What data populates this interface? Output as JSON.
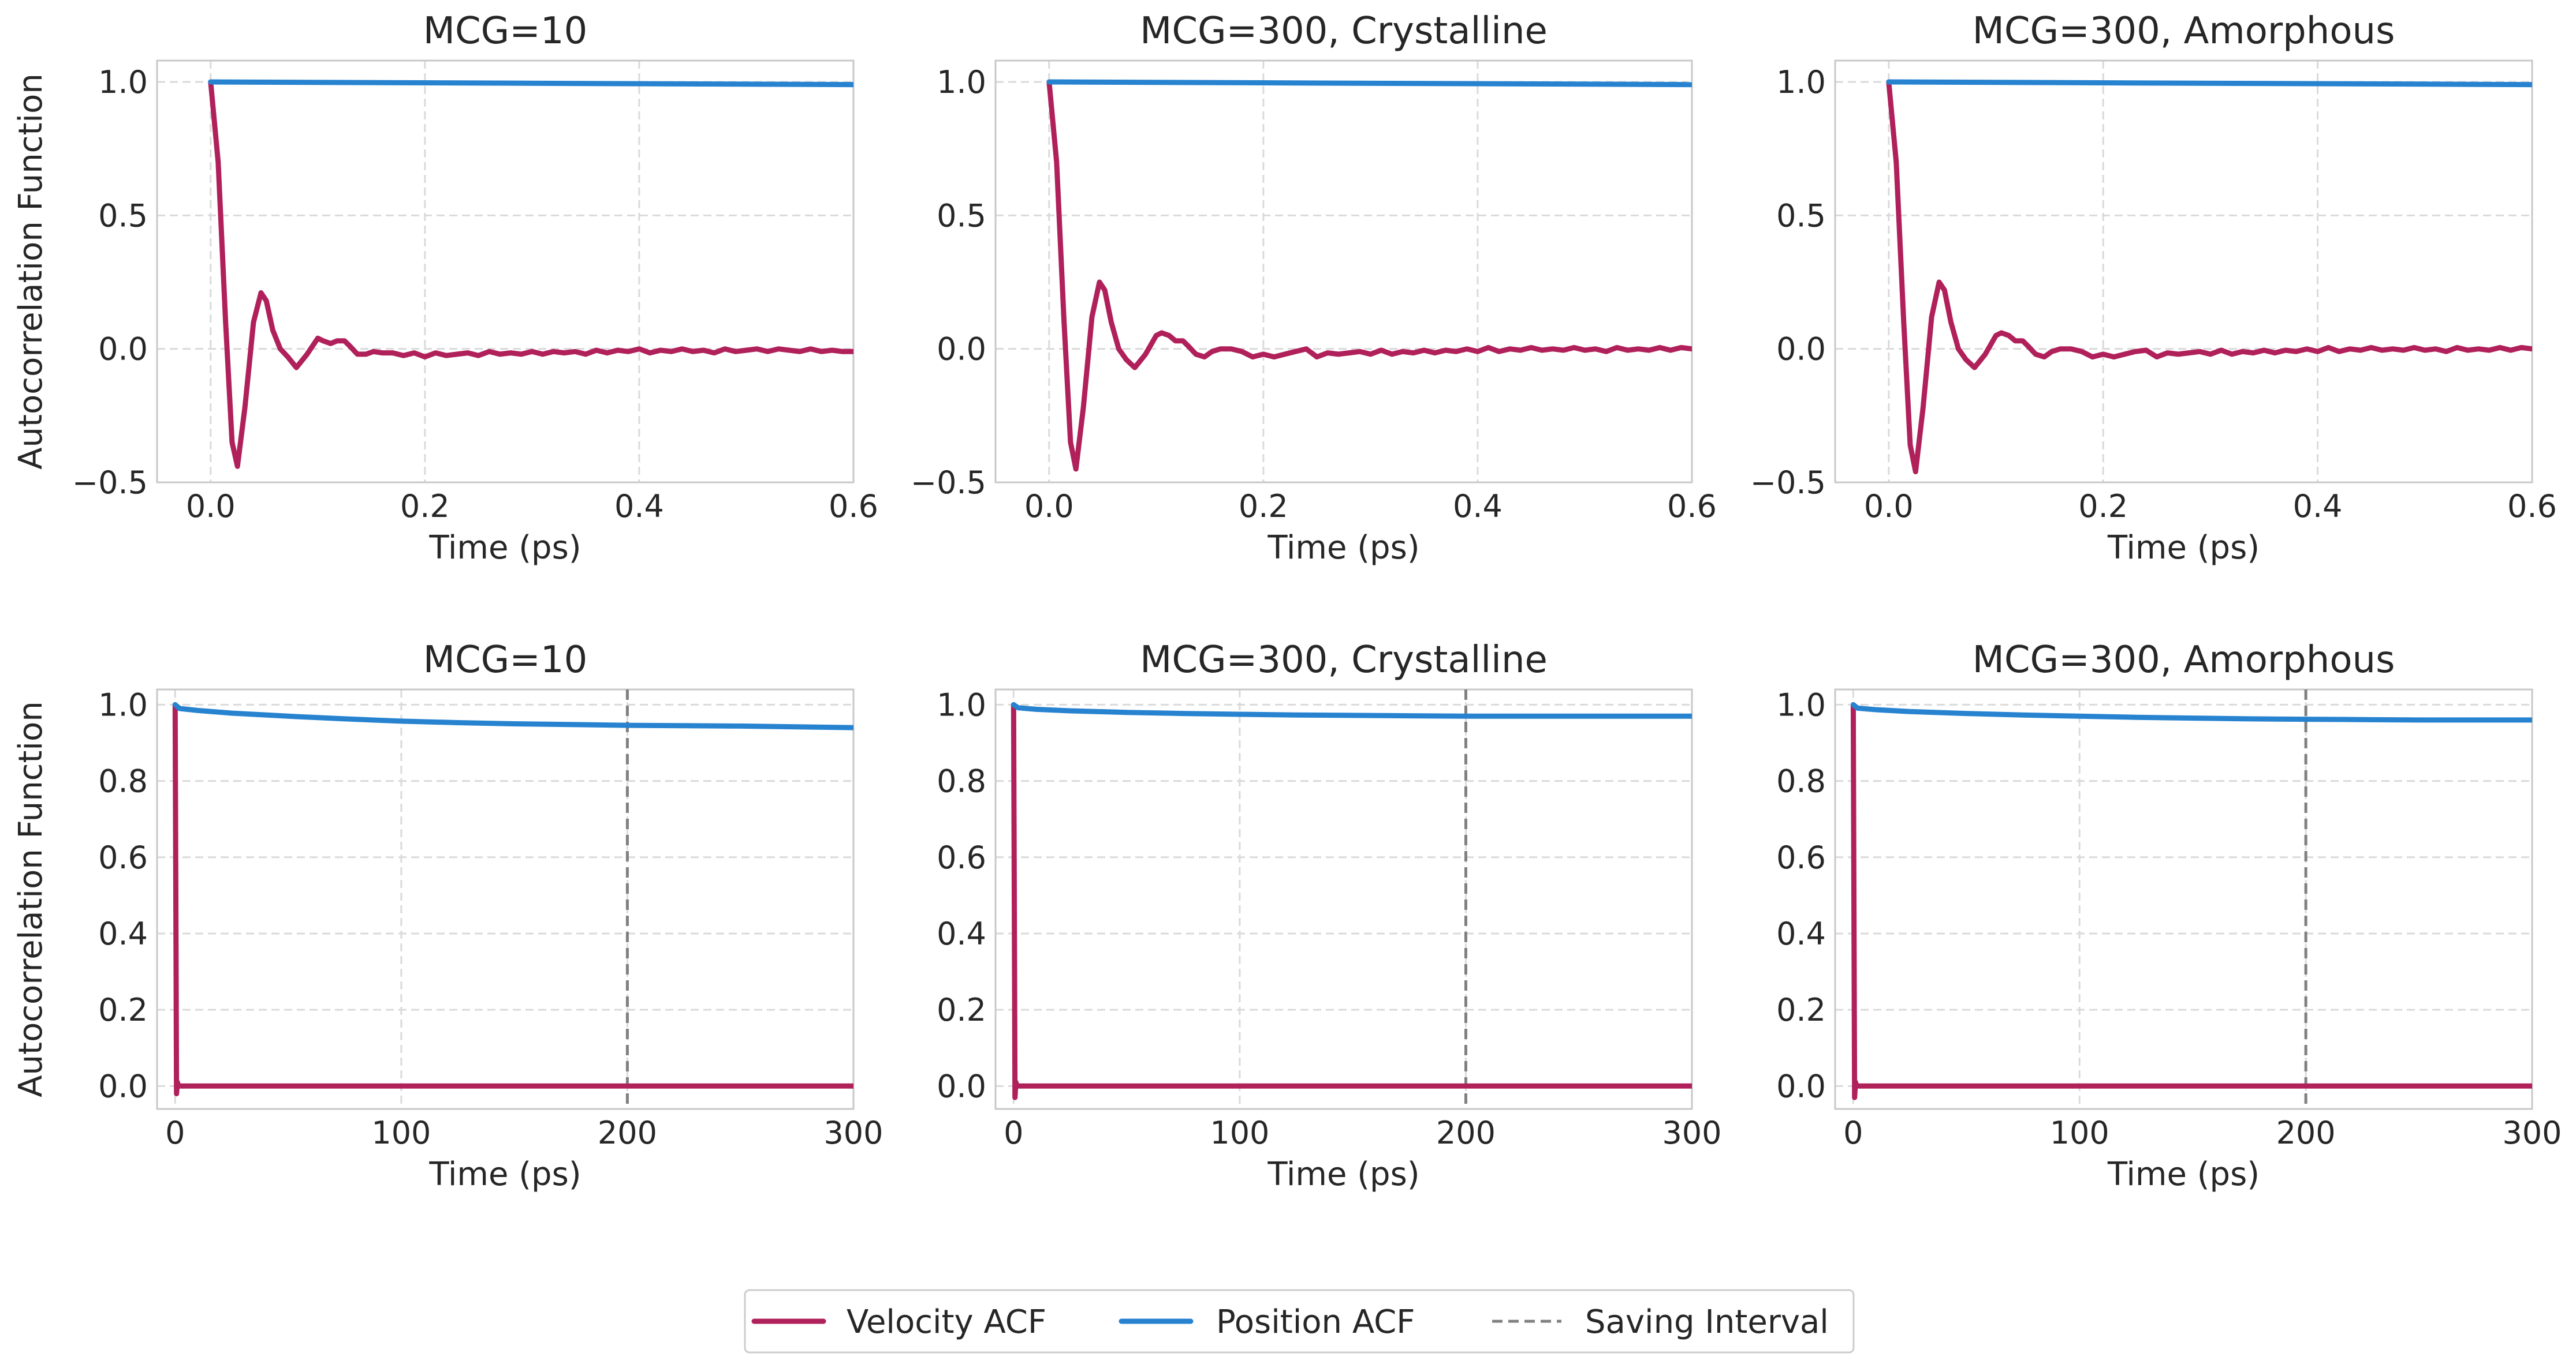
{
  "colors": {
    "velocity": "#B0205A",
    "position": "#2783D0",
    "saving": "#808080",
    "grid": "#DADADA",
    "frame": "#C8C8C8"
  },
  "legend": {
    "velocity": "Velocity ACF",
    "position": "Position ACF",
    "saving": "Saving Interval"
  },
  "chart_data": [
    {
      "type": "line",
      "title": "MCG=10",
      "xlabel": "Time (ps)",
      "ylabel": "Autocorrelation Function",
      "xlim": [
        -0.05,
        0.6
      ],
      "ylim": [
        -0.5,
        1.08
      ],
      "xticks": [
        0.0,
        0.2,
        0.4,
        0.6
      ],
      "xticklabels": [
        "0.0",
        "0.2",
        "0.4",
        "0.6"
      ],
      "yticks": [
        -0.5,
        0.0,
        0.5,
        1.0
      ],
      "yticklabels": [
        "−0.5",
        "0.0",
        "0.5",
        "1.0"
      ],
      "grid": true,
      "series": [
        {
          "name": "Velocity ACF",
          "x": [
            0.0,
            0.007,
            0.014,
            0.02,
            0.025,
            0.032,
            0.04,
            0.047,
            0.052,
            0.058,
            0.065,
            0.072,
            0.08,
            0.09,
            0.1,
            0.105,
            0.112,
            0.118,
            0.125,
            0.13,
            0.137,
            0.145,
            0.152,
            0.16,
            0.17,
            0.18,
            0.19,
            0.2,
            0.21,
            0.22,
            0.23,
            0.24,
            0.25,
            0.26,
            0.27,
            0.28,
            0.29,
            0.3,
            0.31,
            0.32,
            0.33,
            0.34,
            0.35,
            0.36,
            0.37,
            0.38,
            0.39,
            0.4,
            0.41,
            0.42,
            0.43,
            0.44,
            0.45,
            0.46,
            0.47,
            0.48,
            0.49,
            0.5,
            0.51,
            0.52,
            0.53,
            0.54,
            0.55,
            0.56,
            0.57,
            0.58,
            0.59,
            0.6
          ],
          "y": [
            1.0,
            0.7,
            0.1,
            -0.35,
            -0.44,
            -0.22,
            0.1,
            0.21,
            0.18,
            0.07,
            0.0,
            -0.03,
            -0.07,
            -0.02,
            0.04,
            0.03,
            0.02,
            0.03,
            0.03,
            0.01,
            -0.02,
            -0.02,
            -0.01,
            -0.015,
            -0.015,
            -0.025,
            -0.015,
            -0.03,
            -0.015,
            -0.025,
            -0.02,
            -0.015,
            -0.025,
            -0.01,
            -0.02,
            -0.015,
            -0.02,
            -0.01,
            -0.02,
            -0.01,
            -0.015,
            -0.01,
            -0.02,
            -0.005,
            -0.015,
            -0.005,
            -0.01,
            0.0,
            -0.015,
            -0.005,
            -0.01,
            0.0,
            -0.01,
            -0.005,
            -0.015,
            0.0,
            -0.01,
            -0.005,
            0.0,
            -0.01,
            0.0,
            -0.005,
            -0.01,
            0.0,
            -0.01,
            -0.005,
            -0.01,
            -0.01
          ]
        },
        {
          "name": "Position ACF",
          "x": [
            0.0,
            0.6
          ],
          "y": [
            1.0,
            0.99
          ]
        }
      ]
    },
    {
      "type": "line",
      "title": "MCG=300, Crystalline",
      "xlabel": "Time (ps)",
      "ylabel": "",
      "xlim": [
        -0.05,
        0.6
      ],
      "ylim": [
        -0.5,
        1.08
      ],
      "xticks": [
        0.0,
        0.2,
        0.4,
        0.6
      ],
      "xticklabels": [
        "0.0",
        "0.2",
        "0.4",
        "0.6"
      ],
      "yticks": [
        -0.5,
        0.0,
        0.5,
        1.0
      ],
      "yticklabels": [
        "−0.5",
        "0.0",
        "0.5",
        "1.0"
      ],
      "grid": true,
      "series": [
        {
          "name": "Velocity ACF",
          "x": [
            0.0,
            0.007,
            0.014,
            0.02,
            0.025,
            0.032,
            0.04,
            0.047,
            0.052,
            0.058,
            0.065,
            0.072,
            0.08,
            0.09,
            0.1,
            0.105,
            0.112,
            0.118,
            0.125,
            0.13,
            0.137,
            0.145,
            0.152,
            0.16,
            0.17,
            0.18,
            0.19,
            0.2,
            0.21,
            0.22,
            0.23,
            0.24,
            0.25,
            0.26,
            0.27,
            0.28,
            0.29,
            0.3,
            0.31,
            0.32,
            0.33,
            0.34,
            0.35,
            0.36,
            0.37,
            0.38,
            0.39,
            0.4,
            0.41,
            0.42,
            0.43,
            0.44,
            0.45,
            0.46,
            0.47,
            0.48,
            0.49,
            0.5,
            0.51,
            0.52,
            0.53,
            0.54,
            0.55,
            0.56,
            0.57,
            0.58,
            0.59,
            0.6
          ],
          "y": [
            1.0,
            0.7,
            0.1,
            -0.35,
            -0.45,
            -0.22,
            0.12,
            0.25,
            0.22,
            0.1,
            0.0,
            -0.04,
            -0.07,
            -0.02,
            0.05,
            0.06,
            0.05,
            0.03,
            0.03,
            0.01,
            -0.02,
            -0.03,
            -0.01,
            0.0,
            0.0,
            -0.01,
            -0.03,
            -0.02,
            -0.03,
            -0.02,
            -0.01,
            0.0,
            -0.03,
            -0.015,
            -0.02,
            -0.015,
            -0.01,
            -0.02,
            -0.005,
            -0.02,
            -0.01,
            -0.015,
            -0.005,
            -0.015,
            -0.005,
            -0.01,
            0.0,
            -0.01,
            0.005,
            -0.01,
            0.0,
            -0.005,
            0.005,
            -0.005,
            0.0,
            -0.005,
            0.005,
            -0.005,
            0.0,
            -0.01,
            0.005,
            -0.005,
            0.0,
            -0.005,
            0.005,
            -0.005,
            0.005,
            0.0
          ]
        },
        {
          "name": "Position ACF",
          "x": [
            0.0,
            0.6
          ],
          "y": [
            1.0,
            0.99
          ]
        }
      ]
    },
    {
      "type": "line",
      "title": "MCG=300, Amorphous",
      "xlabel": "Time (ps)",
      "ylabel": "",
      "xlim": [
        -0.05,
        0.6
      ],
      "ylim": [
        -0.5,
        1.08
      ],
      "xticks": [
        0.0,
        0.2,
        0.4,
        0.6
      ],
      "xticklabels": [
        "0.0",
        "0.2",
        "0.4",
        "0.6"
      ],
      "yticks": [
        -0.5,
        0.0,
        0.5,
        1.0
      ],
      "yticklabels": [
        "−0.5",
        "0.0",
        "0.5",
        "1.0"
      ],
      "grid": true,
      "series": [
        {
          "name": "Velocity ACF",
          "x": [
            0.0,
            0.007,
            0.014,
            0.02,
            0.025,
            0.032,
            0.04,
            0.047,
            0.052,
            0.058,
            0.065,
            0.072,
            0.08,
            0.09,
            0.1,
            0.105,
            0.112,
            0.118,
            0.125,
            0.13,
            0.137,
            0.145,
            0.152,
            0.16,
            0.17,
            0.18,
            0.19,
            0.2,
            0.21,
            0.22,
            0.23,
            0.24,
            0.25,
            0.26,
            0.27,
            0.28,
            0.29,
            0.3,
            0.31,
            0.32,
            0.33,
            0.34,
            0.35,
            0.36,
            0.37,
            0.38,
            0.39,
            0.4,
            0.41,
            0.42,
            0.43,
            0.44,
            0.45,
            0.46,
            0.47,
            0.48,
            0.49,
            0.5,
            0.51,
            0.52,
            0.53,
            0.54,
            0.55,
            0.56,
            0.57,
            0.58,
            0.59,
            0.6
          ],
          "y": [
            1.0,
            0.7,
            0.1,
            -0.36,
            -0.46,
            -0.22,
            0.12,
            0.25,
            0.22,
            0.1,
            0.0,
            -0.04,
            -0.07,
            -0.02,
            0.05,
            0.06,
            0.05,
            0.03,
            0.03,
            0.01,
            -0.02,
            -0.03,
            -0.01,
            0.0,
            0.0,
            -0.01,
            -0.03,
            -0.02,
            -0.03,
            -0.02,
            -0.01,
            -0.005,
            -0.03,
            -0.015,
            -0.02,
            -0.015,
            -0.01,
            -0.02,
            -0.005,
            -0.02,
            -0.01,
            -0.015,
            -0.005,
            -0.015,
            -0.005,
            -0.01,
            0.0,
            -0.01,
            0.005,
            -0.01,
            0.0,
            -0.005,
            0.005,
            -0.005,
            0.0,
            -0.005,
            0.005,
            -0.005,
            0.0,
            -0.01,
            0.005,
            -0.005,
            0.0,
            -0.005,
            0.005,
            -0.005,
            0.005,
            0.0
          ]
        },
        {
          "name": "Position ACF",
          "x": [
            0.0,
            0.6
          ],
          "y": [
            1.0,
            0.99
          ]
        }
      ]
    },
    {
      "type": "line",
      "title": "MCG=10",
      "xlabel": "Time (ps)",
      "ylabel": "Autocorrelation Function",
      "xlim": [
        -8,
        300
      ],
      "ylim": [
        -0.06,
        1.04
      ],
      "xticks": [
        0,
        100,
        200,
        300
      ],
      "xticklabels": [
        "0",
        "100",
        "200",
        "300"
      ],
      "yticks": [
        0.0,
        0.2,
        0.4,
        0.6,
        0.8,
        1.0
      ],
      "yticklabels": [
        "0.0",
        "0.2",
        "0.4",
        "0.6",
        "0.8",
        "1.0"
      ],
      "grid": true,
      "saving_interval_x": 200,
      "series": [
        {
          "name": "Velocity ACF",
          "x": [
            0,
            0.3,
            0.6,
            1.0,
            1.5,
            2,
            50,
            100,
            150,
            200,
            250,
            300
          ],
          "y": [
            1.0,
            0.5,
            -0.02,
            0.01,
            0.0,
            0.0,
            0.0,
            0.0,
            0.0,
            0.0,
            0.0,
            0.0
          ]
        },
        {
          "name": "Position ACF",
          "x": [
            0,
            2,
            10,
            25,
            50,
            75,
            100,
            125,
            150,
            175,
            200,
            225,
            250,
            275,
            300
          ],
          "y": [
            1.0,
            0.99,
            0.985,
            0.978,
            0.97,
            0.963,
            0.957,
            0.953,
            0.95,
            0.948,
            0.946,
            0.945,
            0.944,
            0.942,
            0.94
          ]
        }
      ]
    },
    {
      "type": "line",
      "title": "MCG=300, Crystalline",
      "xlabel": "Time (ps)",
      "ylabel": "",
      "xlim": [
        -8,
        300
      ],
      "ylim": [
        -0.06,
        1.04
      ],
      "xticks": [
        0,
        100,
        200,
        300
      ],
      "xticklabels": [
        "0",
        "100",
        "200",
        "300"
      ],
      "yticks": [
        0.0,
        0.2,
        0.4,
        0.6,
        0.8,
        1.0
      ],
      "yticklabels": [
        "0.0",
        "0.2",
        "0.4",
        "0.6",
        "0.8",
        "1.0"
      ],
      "grid": true,
      "saving_interval_x": 200,
      "series": [
        {
          "name": "Velocity ACF",
          "x": [
            0,
            0.3,
            0.6,
            1.0,
            1.5,
            2,
            50,
            100,
            150,
            200,
            250,
            300
          ],
          "y": [
            1.0,
            0.5,
            -0.03,
            0.01,
            0.0,
            0.0,
            0.0,
            0.0,
            0.0,
            0.0,
            0.0,
            0.0
          ]
        },
        {
          "name": "Position ACF",
          "x": [
            0,
            2,
            10,
            25,
            50,
            75,
            100,
            125,
            150,
            175,
            200,
            225,
            250,
            275,
            300
          ],
          "y": [
            1.0,
            0.992,
            0.988,
            0.984,
            0.98,
            0.977,
            0.975,
            0.973,
            0.972,
            0.971,
            0.97,
            0.97,
            0.97,
            0.97,
            0.97
          ]
        }
      ]
    },
    {
      "type": "line",
      "title": "MCG=300, Amorphous",
      "xlabel": "Time (ps)",
      "ylabel": "",
      "xlim": [
        -8,
        300
      ],
      "ylim": [
        -0.06,
        1.04
      ],
      "xticks": [
        0,
        100,
        200,
        300
      ],
      "xticklabels": [
        "0",
        "100",
        "200",
        "300"
      ],
      "yticks": [
        0.0,
        0.2,
        0.4,
        0.6,
        0.8,
        1.0
      ],
      "yticklabels": [
        "0.0",
        "0.2",
        "0.4",
        "0.6",
        "0.8",
        "1.0"
      ],
      "grid": true,
      "saving_interval_x": 200,
      "series": [
        {
          "name": "Velocity ACF",
          "x": [
            0,
            0.3,
            0.6,
            1.0,
            1.5,
            2,
            50,
            100,
            150,
            200,
            250,
            300
          ],
          "y": [
            1.0,
            0.5,
            -0.03,
            0.01,
            0.0,
            0.0,
            0.0,
            0.0,
            0.0,
            0.0,
            0.0,
            0.0
          ]
        },
        {
          "name": "Position ACF",
          "x": [
            0,
            2,
            10,
            25,
            50,
            75,
            100,
            125,
            150,
            175,
            200,
            225,
            250,
            275,
            300
          ],
          "y": [
            1.0,
            0.991,
            0.987,
            0.982,
            0.977,
            0.973,
            0.97,
            0.967,
            0.965,
            0.963,
            0.962,
            0.961,
            0.96,
            0.96,
            0.96
          ]
        }
      ]
    }
  ]
}
